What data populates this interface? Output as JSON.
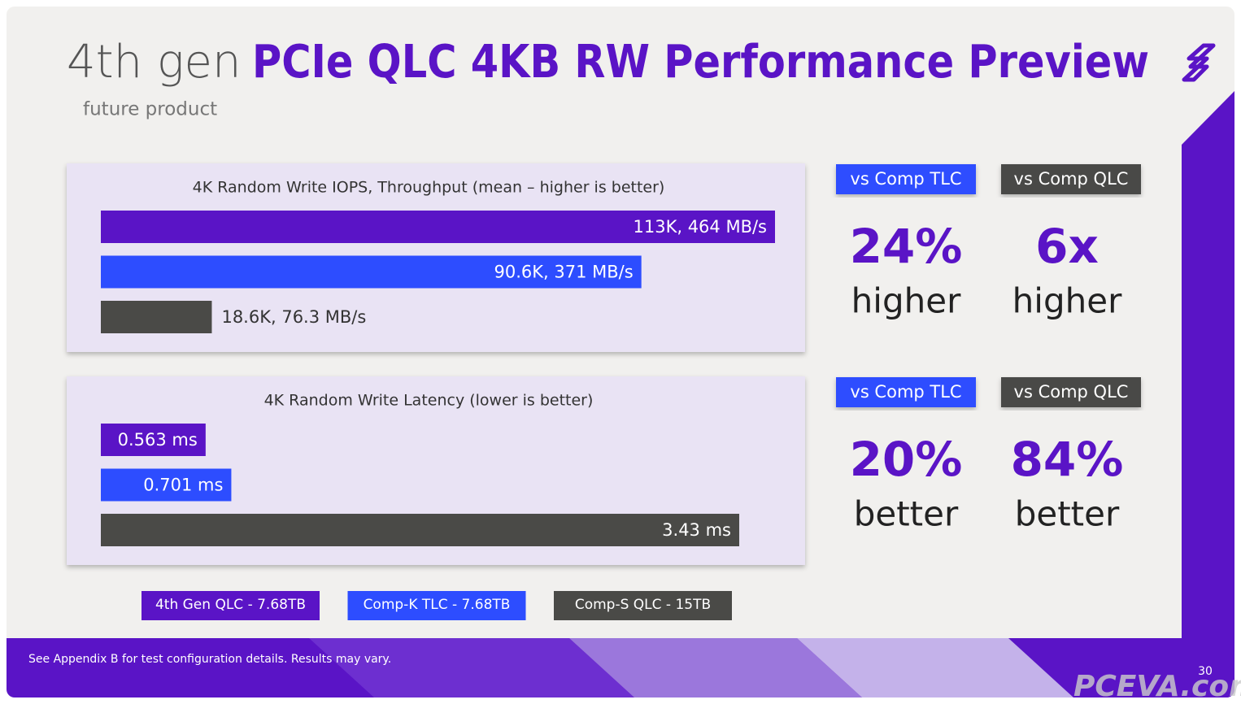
{
  "header": {
    "title_light": "4th gen",
    "title_bold": "PCIe QLC 4KB RW Performance Preview",
    "subtitle": "future product"
  },
  "chart_data": [
    {
      "type": "bar",
      "orientation": "horizontal",
      "title": "4K Random Write IOPS, Throughput (mean – higher is better)",
      "values": [
        113000,
        90600,
        18600
      ],
      "value_labels": [
        "113K, 464 MB/s",
        "90.6K, 371 MB/s",
        "18.6K, 76.3 MB/s"
      ],
      "colors": [
        "#5a14c6",
        "#2d4dff",
        "#4a4a47"
      ],
      "comparisons": [
        {
          "label": "vs Comp TLC",
          "value": "24%",
          "text": "higher",
          "color": "#2d4dff"
        },
        {
          "label": "vs Comp QLC",
          "value": "6x",
          "text": "higher",
          "color": "#4a4a47"
        }
      ]
    },
    {
      "type": "bar",
      "orientation": "horizontal",
      "title": "4K Random Write Latency (lower is better)",
      "values": [
        0.563,
        0.701,
        3.43
      ],
      "value_labels": [
        "0.563 ms",
        "0.701 ms",
        "3.43 ms"
      ],
      "colors": [
        "#5a14c6",
        "#2d4dff",
        "#4a4a47"
      ],
      "comparisons": [
        {
          "label": "vs Comp TLC",
          "value": "20%",
          "text": "better",
          "color": "#2d4dff"
        },
        {
          "label": "vs Comp QLC",
          "value": "84%",
          "text": "better",
          "color": "#4a4a47"
        }
      ]
    }
  ],
  "legend": {
    "items": [
      {
        "name": "4th Gen QLC - 7.68TB",
        "color": "#5a14c6"
      },
      {
        "name": "Comp-K TLC - 7.68TB",
        "color": "#2d4dff"
      },
      {
        "name": "Comp-S QLC - 15TB",
        "color": "#4a4a47"
      }
    ]
  },
  "footer": {
    "note": "See Appendix B for test configuration details. Results may vary.",
    "page": "30",
    "watermark": "PCEVA.com.cn"
  }
}
